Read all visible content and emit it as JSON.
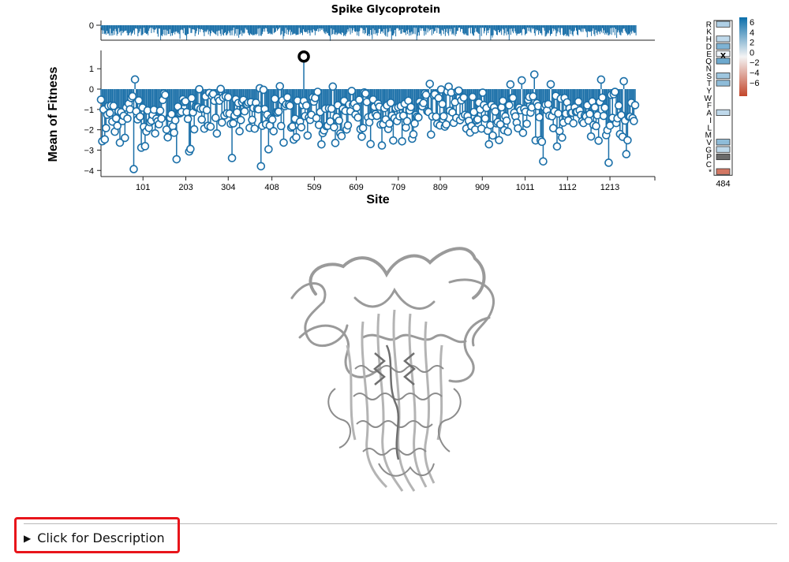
{
  "chart_data": {
    "title": "Spike Glycoprotein",
    "type": "lollipop",
    "xlabel": "Site",
    "ylabel": "Mean of Fitness",
    "xlim": [
      1,
      1320
    ],
    "ylim": [
      -4.3,
      1.9
    ],
    "x_ticks": [
      "101",
      "203",
      "304",
      "408",
      "509",
      "609",
      "709",
      "809",
      "909",
      "1011",
      "1112",
      "1213"
    ],
    "y_ticks": [
      1,
      0,
      -1,
      -2,
      -3,
      -4
    ],
    "overview_ticks": [
      0
    ],
    "selected_site": {
      "site": "484",
      "mean_fitness": 1.6
    },
    "colors": {
      "points": "#1a6fa8",
      "selected": "#000000",
      "positive": "#0b6fab",
      "negative": "#c3462b",
      "mutant_wildtype": "#6b6b6b"
    },
    "heatmap": {
      "site": "484",
      "amino_acids": [
        "R",
        "K",
        "H",
        "D",
        "E",
        "Q",
        "N",
        "S",
        "T",
        "Y",
        "W",
        "F",
        "A",
        "I",
        "L",
        "M",
        "V",
        "G",
        "P",
        "C",
        "*"
      ],
      "values": [
        2.0,
        null,
        1.5,
        3.5,
        0,
        4.0,
        null,
        2.5,
        3.0,
        null,
        null,
        null,
        1.5,
        null,
        null,
        null,
        3.0,
        1.5,
        null,
        null,
        -5.0
      ],
      "wildtype": "E",
      "legend_ticks": [
        "6",
        "4",
        "2",
        "0",
        "−2",
        "−4",
        "−6"
      ]
    }
  },
  "description_toggle": {
    "label": "Click for Description"
  },
  "structure": {
    "icon": "protein-structure-icon"
  }
}
